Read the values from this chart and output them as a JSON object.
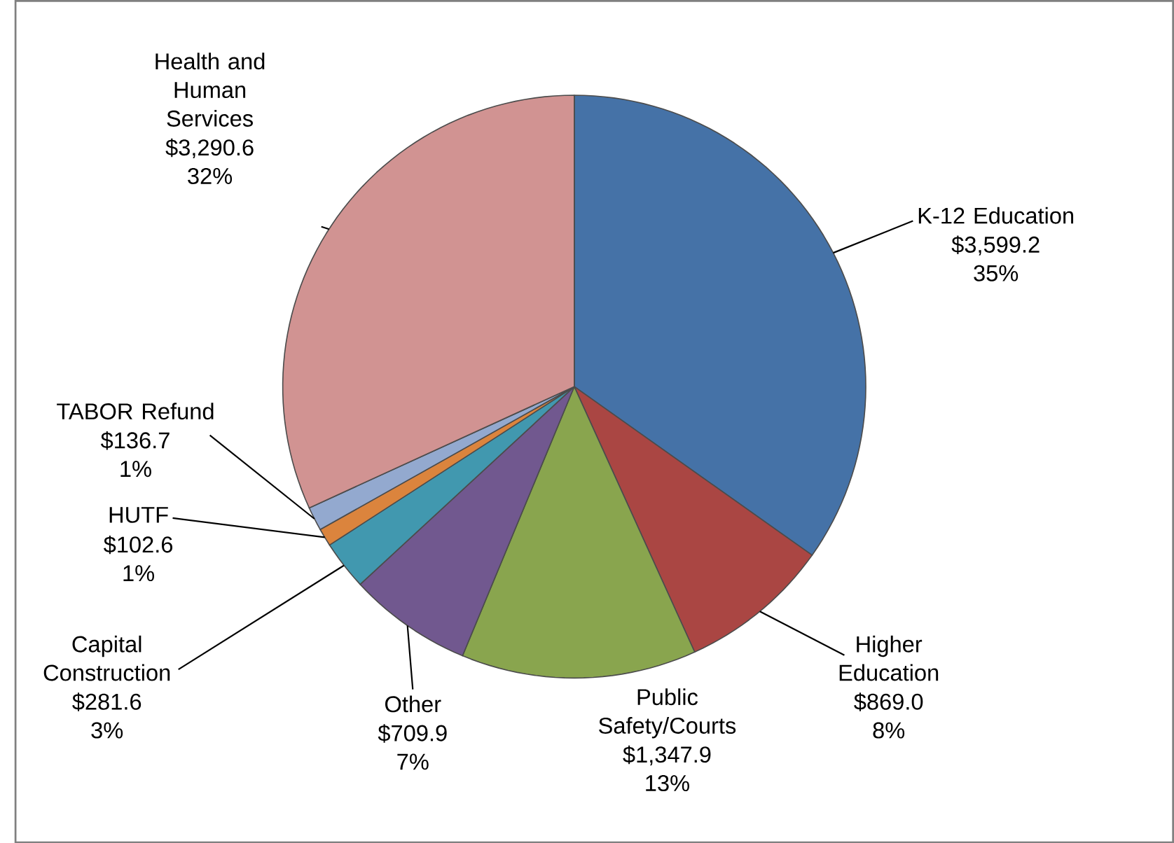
{
  "chart_data": {
    "type": "pie",
    "categories": [
      "K-12 Education",
      "Higher Education",
      "Public Safety/Courts",
      "Other",
      "Capital Construction",
      "HUTF",
      "TABOR Refund",
      "Health and Human Services"
    ],
    "values": [
      3599.2,
      869.0,
      1347.9,
      709.9,
      281.6,
      102.6,
      136.7,
      3290.6
    ],
    "colors": [
      "#4572a7",
      "#aa4643",
      "#89a54e",
      "#71588f",
      "#4198af",
      "#db843d",
      "#93a9cf",
      "#d19392"
    ],
    "value_labels": [
      "$3,599.2 35%",
      "$869.0 8%",
      "$1,347.9 13%",
      "$709.9 7%",
      "$281.6 3%",
      "$102.6 1%",
      "$136.7 1%",
      "$3,290.6 32%"
    ]
  }
}
